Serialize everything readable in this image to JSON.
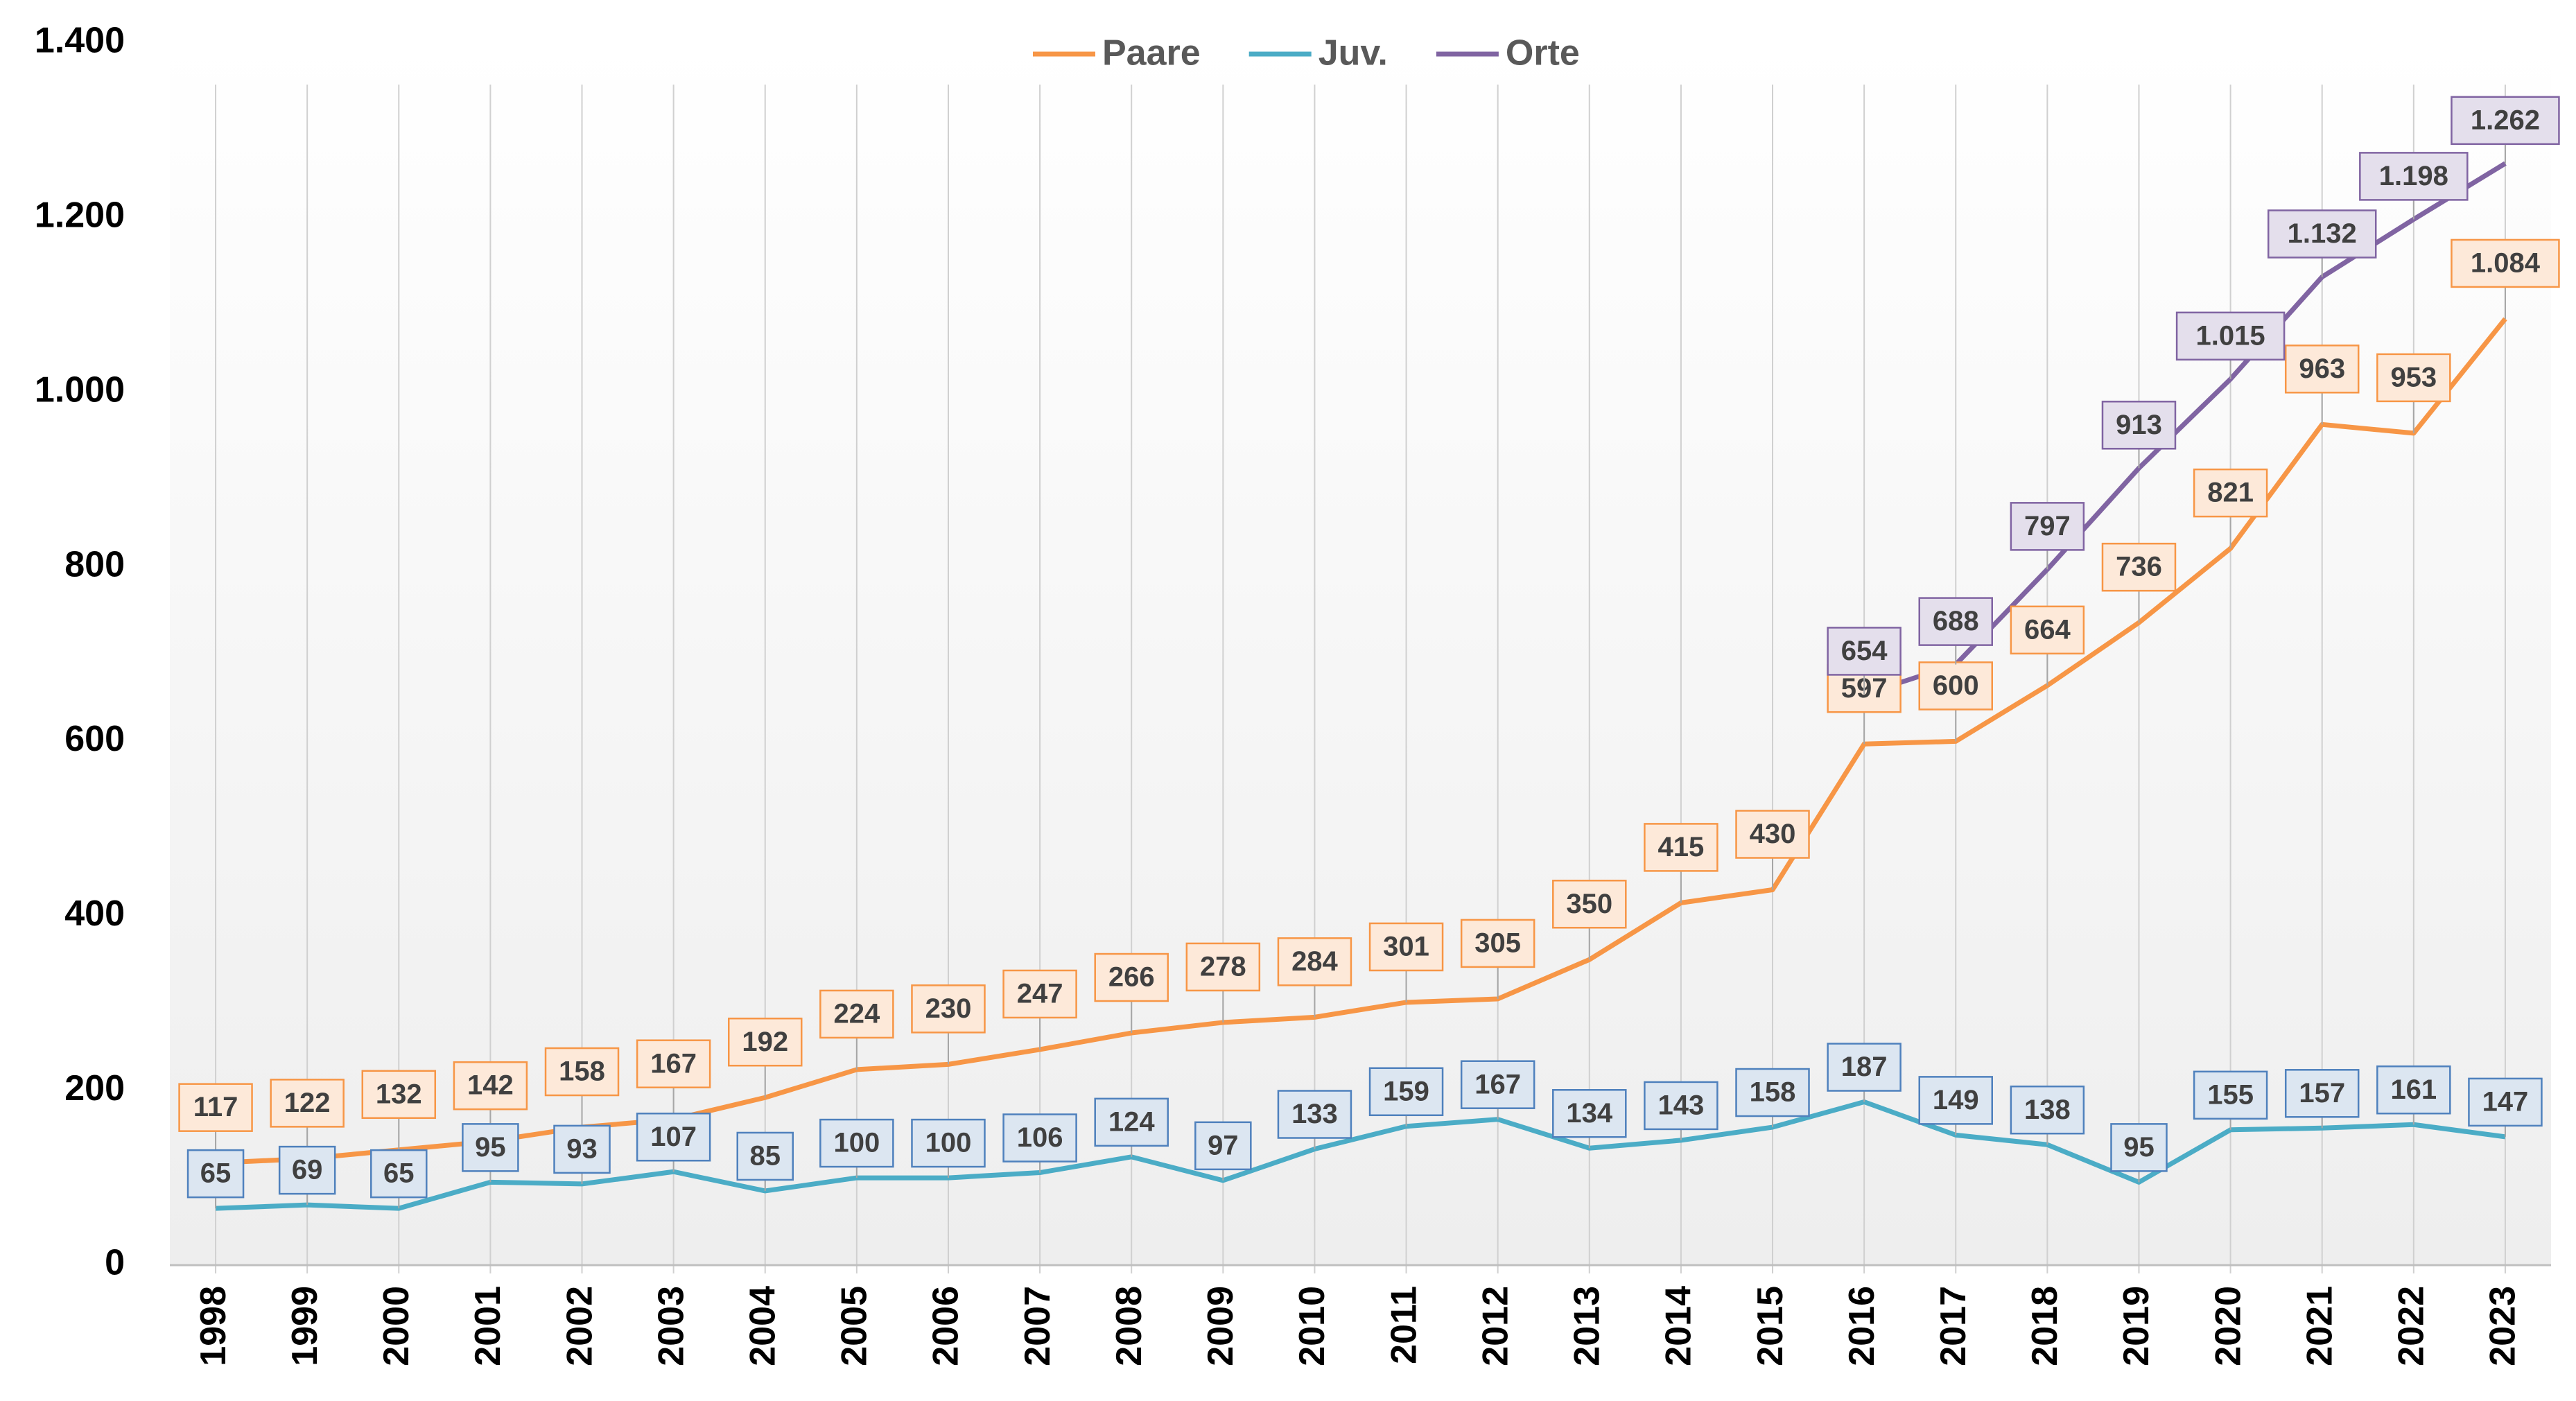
{
  "chart_data": {
    "type": "line",
    "categories": [
      "1998",
      "1999",
      "2000",
      "2001",
      "2002",
      "2003",
      "2004",
      "2005",
      "2006",
      "2007",
      "2008",
      "2009",
      "2010",
      "2011",
      "2012",
      "2013",
      "2014",
      "2015",
      "2016",
      "2017",
      "2018",
      "2019",
      "2020",
      "2021",
      "2022",
      "2023"
    ],
    "series": [
      {
        "name": "Paare",
        "color": "#f79646",
        "label_fill": "#fde9d9",
        "values": [
          117,
          122,
          132,
          142,
          158,
          167,
          192,
          224,
          230,
          247,
          266,
          278,
          284,
          301,
          305,
          350,
          415,
          430,
          597,
          600,
          664,
          736,
          821,
          963,
          953,
          1084
        ],
        "value_labels": [
          "117",
          "122",
          "132",
          "142",
          "158",
          "167",
          "192",
          "224",
          "230",
          "247",
          "266",
          "278",
          "284",
          "301",
          "305",
          "350",
          "415",
          "430",
          "597",
          "600",
          "664",
          "736",
          "821",
          "963",
          "953",
          "1.084"
        ]
      },
      {
        "name": "Juv.",
        "color": "#4bacc6",
        "label_fill": "#dce6f1",
        "label_stroke": "#4f81bd",
        "values": [
          65,
          69,
          65,
          95,
          93,
          107,
          85,
          100,
          100,
          106,
          124,
          97,
          133,
          159,
          167,
          134,
          143,
          158,
          187,
          149,
          138,
          95,
          155,
          157,
          161,
          147
        ]
      },
      {
        "name": "Orte",
        "color": "#8064a2",
        "label_fill": "#e4dfec",
        "values": [
          null,
          null,
          null,
          null,
          null,
          null,
          null,
          null,
          null,
          null,
          null,
          null,
          null,
          null,
          null,
          null,
          null,
          null,
          654,
          688,
          797,
          913,
          1015,
          1132,
          1198,
          1262
        ],
        "value_labels": [
          null,
          null,
          null,
          null,
          null,
          null,
          null,
          null,
          null,
          null,
          null,
          null,
          null,
          null,
          null,
          null,
          null,
          null,
          "654",
          "688",
          "797",
          "913",
          "1.015",
          "1.132",
          "1.198",
          "1.262"
        ]
      }
    ],
    "ylim": [
      0,
      1400
    ],
    "yticks": [
      0,
      200,
      400,
      600,
      800,
      {
        "value": 1000,
        "label": "1.000"
      },
      {
        "value": 1200,
        "label": "1.200"
      },
      {
        "value": 1400,
        "label": "1.400"
      }
    ],
    "legend": "top"
  }
}
